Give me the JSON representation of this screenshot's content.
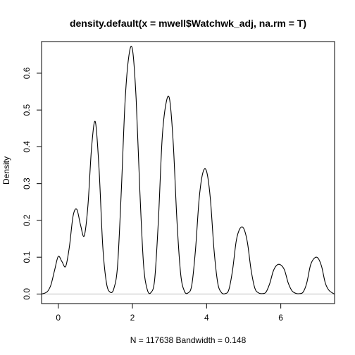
{
  "chart_data": {
    "type": "line",
    "title": "density.default(x = mwell$Watchwk_adj, na.rm = T)",
    "xlabel": "N = 117638   Bandwidth = 0.148",
    "ylabel": "Density",
    "xlim": [
      -0.45,
      7.45
    ],
    "ylim": [
      -0.026,
      0.686
    ],
    "x_ticks": [
      0,
      2,
      4,
      6
    ],
    "x_tick_labels": [
      "0",
      "2",
      "4",
      "6"
    ],
    "y_ticks": [
      0.0,
      0.1,
      0.2,
      0.3,
      0.4,
      0.5,
      0.6
    ],
    "y_tick_labels": [
      "0.0",
      "0.1",
      "0.2",
      "0.3",
      "0.4",
      "0.5",
      "0.6"
    ],
    "grid": false,
    "legend": "none",
    "baseline": 0,
    "colors": {
      "line": "#000000",
      "baseline": "#bebebe",
      "frame": "#000000"
    },
    "series": [
      {
        "x": [
          -0.44,
          -0.3,
          -0.2,
          -0.1,
          0.0,
          0.1,
          0.2,
          0.3,
          0.4,
          0.5,
          0.6,
          0.7,
          0.8,
          0.9,
          1.0,
          1.1,
          1.2,
          1.3,
          1.4,
          1.5,
          1.6,
          1.7,
          1.8,
          1.9,
          2.0,
          2.1,
          2.2,
          2.3,
          2.4,
          2.5,
          2.6,
          2.7,
          2.8,
          2.9,
          3.0,
          3.1,
          3.2,
          3.3,
          3.4,
          3.5,
          3.6,
          3.7,
          3.8,
          3.9,
          4.0,
          4.1,
          4.2,
          4.3,
          4.4,
          4.5,
          4.6,
          4.7,
          4.8,
          4.9,
          5.0,
          5.1,
          5.2,
          5.3,
          5.4,
          5.5,
          5.6,
          5.7,
          5.8,
          5.9,
          6.0,
          6.1,
          6.2,
          6.3,
          6.4,
          6.5,
          6.6,
          6.7,
          6.8,
          6.9,
          7.0,
          7.1,
          7.2,
          7.3,
          7.44
        ],
        "y": [
          0.0,
          0.006,
          0.024,
          0.064,
          0.102,
          0.088,
          0.075,
          0.128,
          0.212,
          0.23,
          0.188,
          0.158,
          0.24,
          0.4,
          0.468,
          0.34,
          0.13,
          0.03,
          0.005,
          0.015,
          0.078,
          0.28,
          0.52,
          0.644,
          0.665,
          0.53,
          0.28,
          0.08,
          0.012,
          0.004,
          0.04,
          0.2,
          0.42,
          0.515,
          0.53,
          0.41,
          0.2,
          0.055,
          0.008,
          0.003,
          0.024,
          0.12,
          0.26,
          0.33,
          0.333,
          0.26,
          0.12,
          0.03,
          0.004,
          0.001,
          0.012,
          0.065,
          0.145,
          0.178,
          0.178,
          0.14,
          0.065,
          0.016,
          0.003,
          0.001,
          0.005,
          0.028,
          0.063,
          0.079,
          0.079,
          0.065,
          0.03,
          0.009,
          0.002,
          0.001,
          0.005,
          0.03,
          0.078,
          0.097,
          0.098,
          0.075,
          0.03,
          0.01,
          0.0
        ]
      }
    ]
  }
}
